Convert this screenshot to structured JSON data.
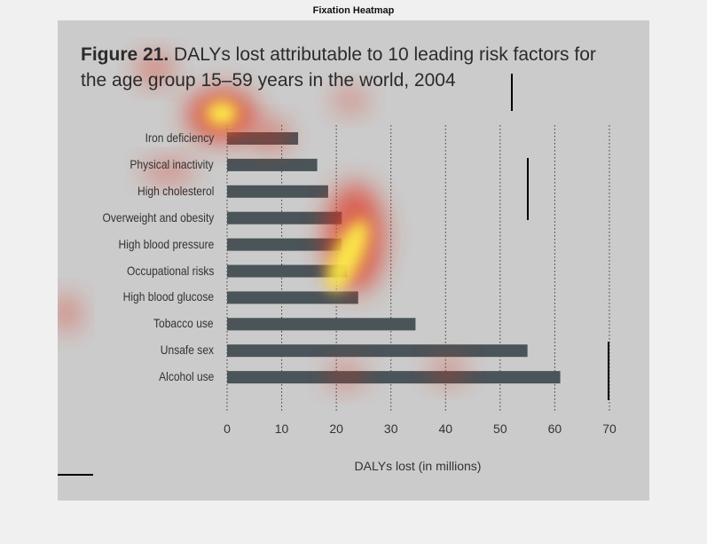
{
  "window": {
    "title": "Fixation Heatmap"
  },
  "figure": {
    "number": "Figure 21.",
    "title_line1": "DALYs lost attributable to 10 leading risk factors for",
    "title_line2": "the age group 15–59 years in the world, 2004"
  },
  "chart_data": {
    "type": "bar",
    "orientation": "horizontal",
    "title": "Figure 21. DALYs lost attributable to 10 leading risk factors for the age group 15–59 years in the world, 2004",
    "xlabel": "DALYs lost (in millions)",
    "ylabel": "",
    "categories": [
      "Iron deficiency",
      "Physical inactivity",
      "High cholesterol",
      "Overweight and obesity",
      "High blood pressure",
      "Occupational risks",
      "High blood glucose",
      "Tobacco use",
      "Unsafe sex",
      "Alcohol use"
    ],
    "values": [
      13,
      16.5,
      18.5,
      21,
      21,
      22,
      24,
      34.5,
      55,
      61
    ],
    "xlim": [
      0,
      70
    ],
    "xticks": [
      "0",
      "10",
      "20",
      "30",
      "40",
      "50",
      "60",
      "70"
    ],
    "grid": "vertical-dotted",
    "bar_color": "#4a5459",
    "heatmap_overlay": true
  }
}
